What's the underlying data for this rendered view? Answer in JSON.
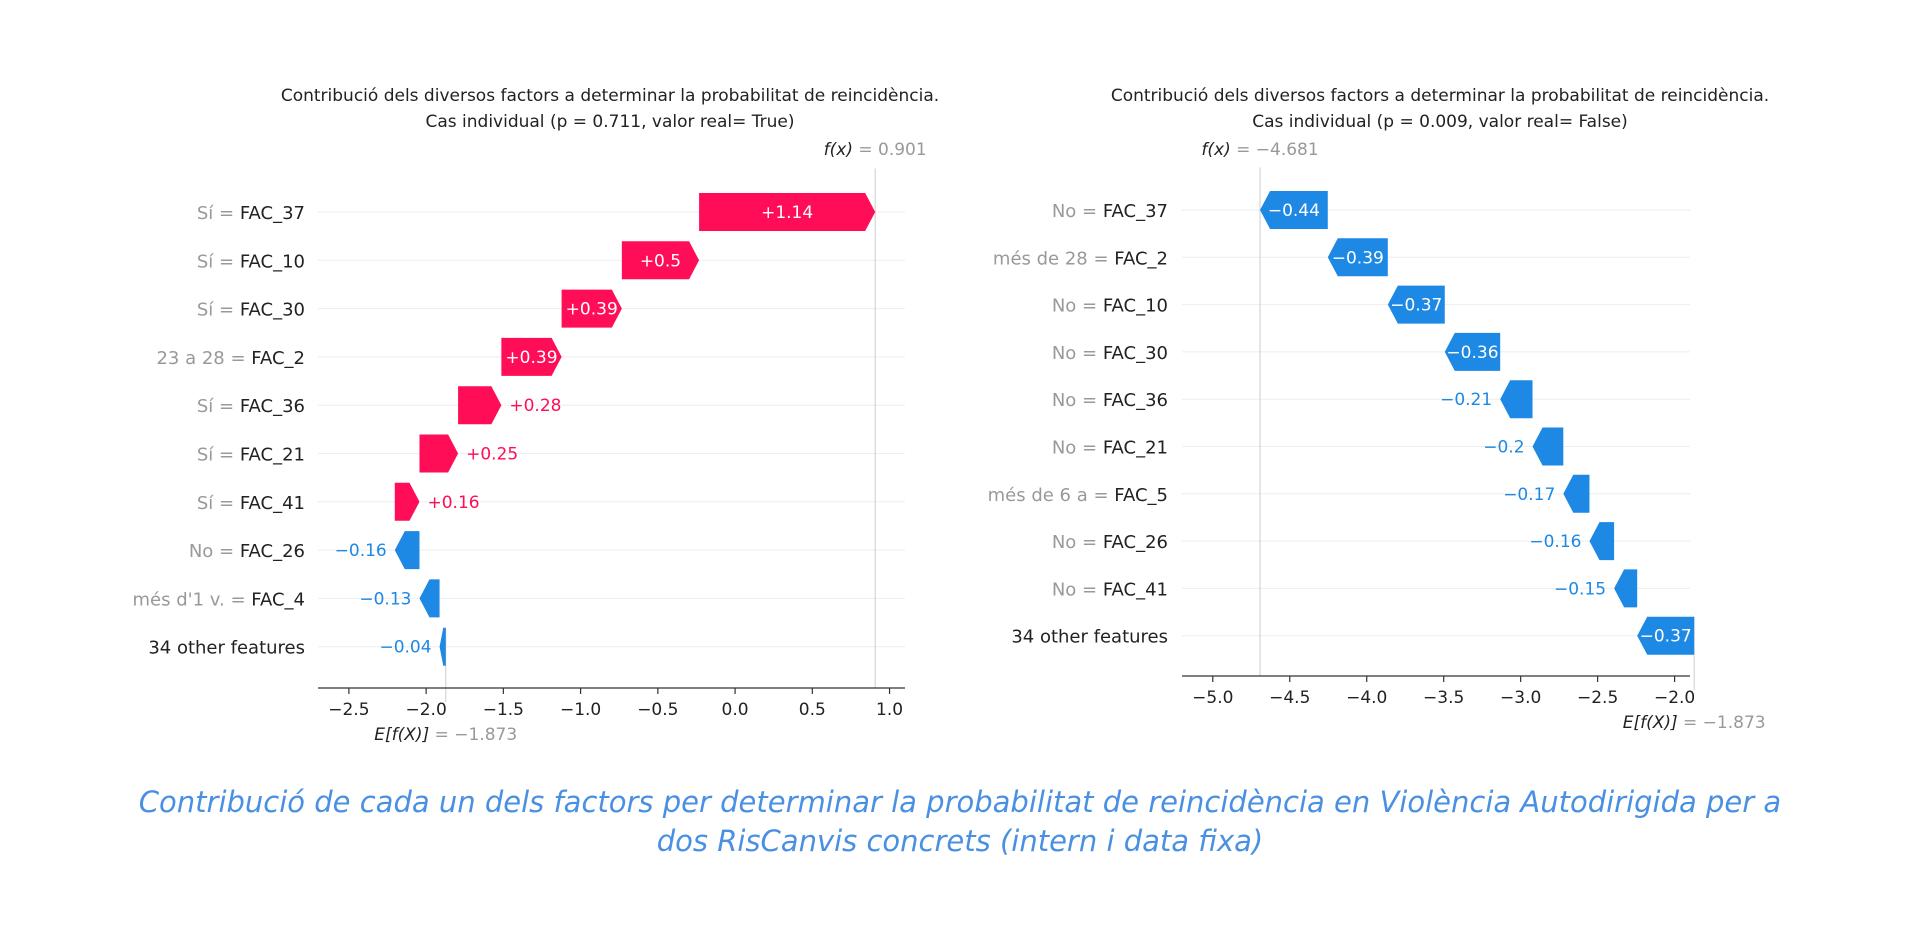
{
  "colors": {
    "positive": "#ff0d57",
    "negative": "#1e88e5",
    "faint_text": "#999999",
    "text": "#222222",
    "caption": "#4a90e2"
  },
  "caption": {
    "line1": "Contribució de cada un dels factors per determinar la probabilitat de reincidència  en Violència Autodirigida per a",
    "line2": "dos RisCanvis concrets (intern i data fixa)"
  },
  "chart_data": [
    {
      "type": "waterfall",
      "title": "Contribució dels diversos factors a determinar la probabilitat de reincidència.",
      "subtitle": "Cas individual (p = 0.711, valor real= True)",
      "fx_label": "f(x)",
      "fx_value": "0.901",
      "efx_label": "E[f(X)]",
      "efx_value": "−1.873",
      "base": -1.873,
      "xlim": [
        -2.7,
        1.1
      ],
      "xticks": [
        -2.5,
        -2.0,
        -1.5,
        -1.0,
        -0.5,
        0.0,
        0.5,
        1.0
      ],
      "xtick_labels": [
        "−2.5",
        "−2.0",
        "−1.5",
        "−1.0",
        "−0.5",
        "0.0",
        "0.5",
        "1.0"
      ],
      "rows": [
        {
          "value_prefix": "Sí = ",
          "feature": "FAC_37",
          "contribution": 1.14,
          "label": "+1.14"
        },
        {
          "value_prefix": "Sí = ",
          "feature": "FAC_10",
          "contribution": 0.5,
          "label": "+0.5"
        },
        {
          "value_prefix": "Sí = ",
          "feature": "FAC_30",
          "contribution": 0.39,
          "label": "+0.39"
        },
        {
          "value_prefix": "23 a 28 = ",
          "feature": "FAC_2",
          "contribution": 0.39,
          "label": "+0.39"
        },
        {
          "value_prefix": "Sí = ",
          "feature": "FAC_36",
          "contribution": 0.28,
          "label": "+0.28"
        },
        {
          "value_prefix": "Sí = ",
          "feature": "FAC_21",
          "contribution": 0.25,
          "label": "+0.25"
        },
        {
          "value_prefix": "Sí = ",
          "feature": "FAC_41",
          "contribution": 0.16,
          "label": "+0.16"
        },
        {
          "value_prefix": "No = ",
          "feature": "FAC_26",
          "contribution": -0.16,
          "label": "−0.16"
        },
        {
          "value_prefix": "més d'1 v. = ",
          "feature": "FAC_4",
          "contribution": -0.13,
          "label": "−0.13"
        },
        {
          "value_prefix": "",
          "feature": "34 other features",
          "contribution": -0.04,
          "label": "−0.04"
        }
      ]
    },
    {
      "type": "waterfall",
      "title": "Contribució dels diversos factors a determinar la probabilitat de reincidència.",
      "subtitle": "Cas individual (p = 0.009, valor real= False)",
      "fx_label": "f(x)",
      "fx_value": "−4.681",
      "efx_label": "E[f(X)]",
      "efx_value": "−1.873",
      "base": -1.873,
      "xlim": [
        -5.2,
        -1.9
      ],
      "xticks": [
        -5.0,
        -4.5,
        -4.0,
        -3.5,
        -3.0,
        -2.5,
        -2.0
      ],
      "xtick_labels": [
        "−5.0",
        "−4.5",
        "−4.0",
        "−3.5",
        "−3.0",
        "−2.5",
        "−2.0"
      ],
      "rows": [
        {
          "value_prefix": "No = ",
          "feature": "FAC_37",
          "contribution": -0.44,
          "label": "−0.44"
        },
        {
          "value_prefix": "més de 28 = ",
          "feature": "FAC_2",
          "contribution": -0.39,
          "label": "−0.39"
        },
        {
          "value_prefix": "No = ",
          "feature": "FAC_10",
          "contribution": -0.37,
          "label": "−0.37"
        },
        {
          "value_prefix": "No = ",
          "feature": "FAC_30",
          "contribution": -0.36,
          "label": "−0.36"
        },
        {
          "value_prefix": "No = ",
          "feature": "FAC_36",
          "contribution": -0.21,
          "label": "−0.21"
        },
        {
          "value_prefix": "No = ",
          "feature": "FAC_21",
          "contribution": -0.2,
          "label": "−0.2"
        },
        {
          "value_prefix": "més de 6 a = ",
          "feature": "FAC_5",
          "contribution": -0.17,
          "label": "−0.17"
        },
        {
          "value_prefix": "No = ",
          "feature": "FAC_26",
          "contribution": -0.16,
          "label": "−0.16"
        },
        {
          "value_prefix": "No = ",
          "feature": "FAC_41",
          "contribution": -0.15,
          "label": "−0.15"
        },
        {
          "value_prefix": "",
          "feature": "34 other features",
          "contribution": -0.37,
          "label": "−0.37"
        }
      ]
    }
  ]
}
